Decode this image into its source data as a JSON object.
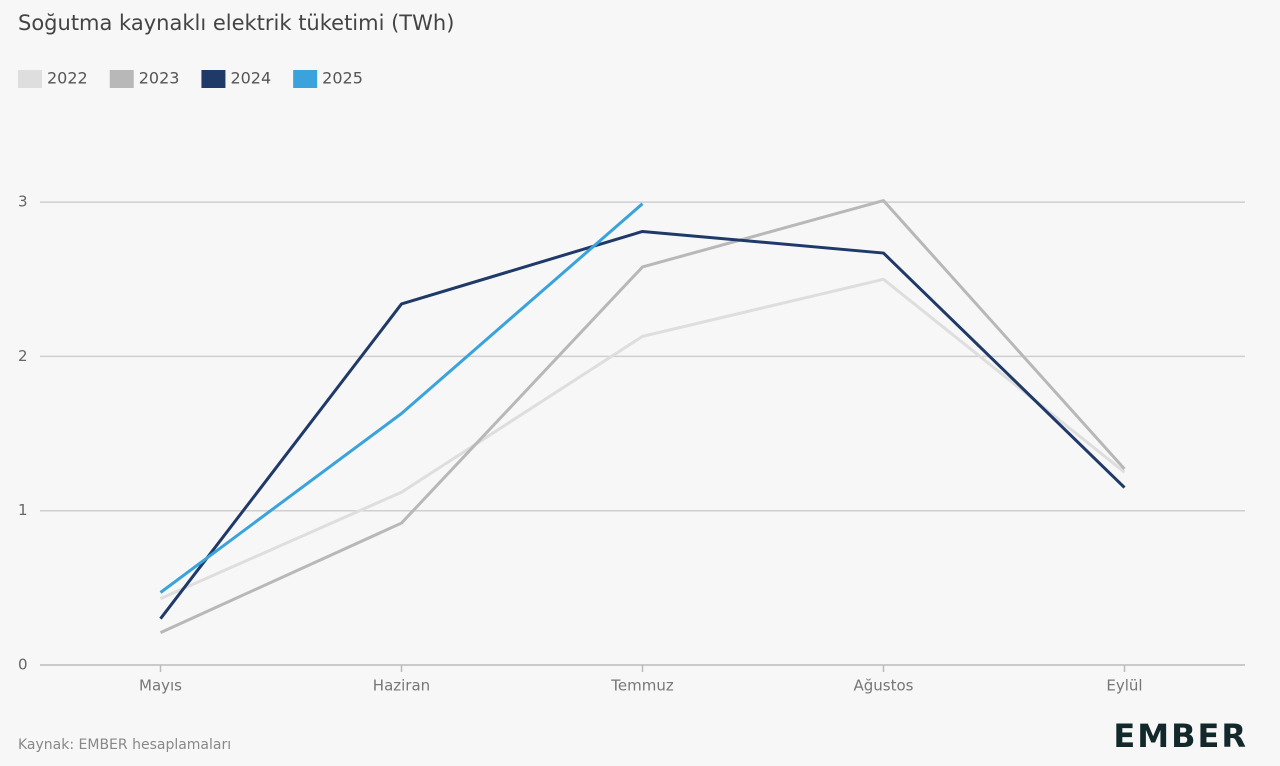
{
  "chart_data": {
    "type": "line",
    "title": "Soğutma kaynaklı elektrik tüketimi (TWh)",
    "source": "Kaynak: EMBER hesaplamaları",
    "brand": "EMBER",
    "categories": [
      "Mayıs",
      "Haziran",
      "Temmuz",
      "Ağustos",
      "Eylül"
    ],
    "series": [
      {
        "name": "2022",
        "color": "#dedede",
        "values": [
          0.43,
          1.12,
          2.13,
          2.5,
          1.25
        ]
      },
      {
        "name": "2023",
        "color": "#b8b8b8",
        "values": [
          0.21,
          0.92,
          2.58,
          3.01,
          1.27
        ]
      },
      {
        "name": "2024",
        "color": "#1f3a68",
        "values": [
          0.3,
          2.34,
          2.81,
          2.67,
          1.15
        ]
      },
      {
        "name": "2025",
        "color": "#3aa3dc",
        "values": [
          0.47,
          1.63,
          2.99,
          null,
          null
        ]
      }
    ],
    "ylim": [
      0,
      3.5
    ],
    "yticks": [
      0,
      1,
      2,
      3
    ],
    "grid": true,
    "legend": "top-left"
  }
}
